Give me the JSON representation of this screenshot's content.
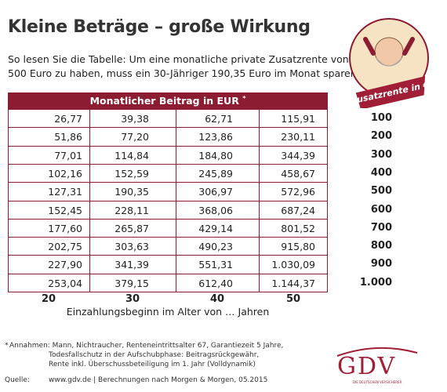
{
  "header": {
    "title": "Kleine Beträge – große Wirkung",
    "subtitle_lines": [
      "So lesen Sie die Tabelle: Um eine monatliche private Zusatzrente von",
      "500 Euro zu haben, muss ein 30-Jähriger 190,35 Euro im Monat sparen."
    ]
  },
  "badge": "Zusatzrente in €",
  "table": {
    "header": "Monatlicher Beitrag in EUR",
    "header_mark": "*",
    "rows": [
      [
        "26,77",
        "39,38",
        "62,71",
        "115,91"
      ],
      [
        "51,86",
        "77,20",
        "123,86",
        "230,11"
      ],
      [
        "77,01",
        "114,84",
        "184,80",
        "344,39"
      ],
      [
        "102,16",
        "152,59",
        "245,89",
        "458,67"
      ],
      [
        "127,31",
        "190,35",
        "306,97",
        "572,96"
      ],
      [
        "152,45",
        "228,11",
        "368,06",
        "687,24"
      ],
      [
        "177,60",
        "265,87",
        "429,14",
        "801,52"
      ],
      [
        "202,75",
        "303,63",
        "490,23",
        "915,80"
      ],
      [
        "227,90",
        "341,39",
        "551,31",
        "1.030,09"
      ],
      [
        "253,04",
        "379,15",
        "612,40",
        "1.144,37"
      ]
    ],
    "rente": [
      "100",
      "200",
      "300",
      "400",
      "500",
      "600",
      "700",
      "800",
      "900",
      "1.000"
    ],
    "ages": [
      "20",
      "30",
      "40",
      "50"
    ],
    "age_label": "Einzahlungsbeginn im Alter von … Jahren"
  },
  "footnote": {
    "marker": "*",
    "lines": [
      "Annahmen: Mann, Nichtraucher, Renteneintrittsalter 67, Garantiezeit 5 Jahre,",
      "Todesfallschutz in der Aufschubphase: Beitragsrückgewähr,",
      "Rente inkl. Überschussbeteiligung im 1. Jahr (Volldynamik)"
    ]
  },
  "source": {
    "label": "Quelle:",
    "text": "www.gdv.de | Berechnungen nach Morgen & Morgen, 05.2015"
  },
  "logo": {
    "name": "GDV",
    "tagline": "DIE DEUTSCHEN VERSICHERER"
  }
}
